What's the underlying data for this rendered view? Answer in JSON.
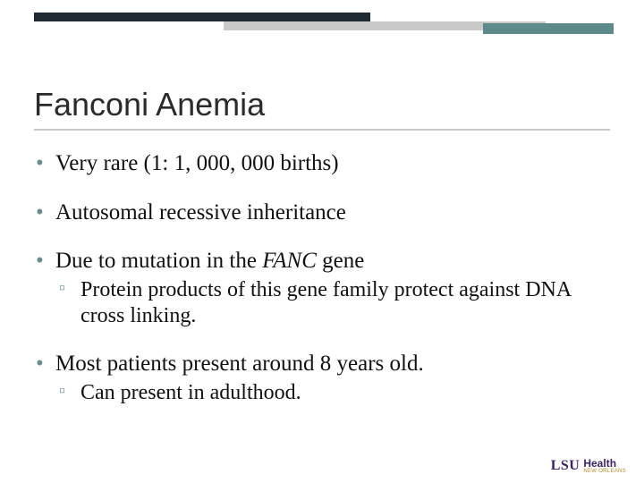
{
  "decor": {
    "dark_bar_color": "#1f2a33",
    "gray_bar_color": "#c9c9c9",
    "teal_bar_color": "#5f8a8a"
  },
  "title": "Fanconi Anemia",
  "title_color": "#2b2b2b",
  "title_fontsize": 36,
  "bullet_color": "#6a8e8e",
  "body_fontsize": 25,
  "sub_fontsize": 24,
  "bullets": [
    {
      "text": "Very rare (1: 1, 000, 000 births)"
    },
    {
      "text": "Autosomal recessive inheritance"
    },
    {
      "text_prefix": "Due to mutation in the ",
      "text_italic": "FANC",
      "text_suffix": " gene",
      "sub": [
        "Protein products of this gene family protect against DNA cross linking."
      ]
    },
    {
      "text": "Most patients present around 8 years old.",
      "sub": [
        "Can present in adulthood."
      ]
    }
  ],
  "logo": {
    "lsu": "LSU",
    "health": "Health",
    "sub": "NEW ORLEANS",
    "lsu_color": "#3b2463",
    "sub_color": "#b58a2e"
  }
}
